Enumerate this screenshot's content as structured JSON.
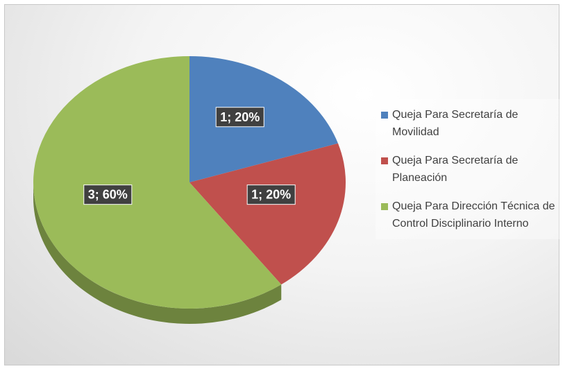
{
  "chart_data": {
    "type": "pie",
    "categories": [
      "Queja Para Secretaría de Movilidad",
      "Queja Para Secretaría de Planeación",
      "Queja Para Dirección Técnica de Control Disciplinario Interno"
    ],
    "values": [
      1,
      1,
      3
    ],
    "value_labels": [
      "1; 20%",
      "1; 20%",
      "3; 60%"
    ],
    "colors": [
      "#4f81bd",
      "#c0504d",
      "#9bbb59"
    ],
    "legend": "right"
  }
}
